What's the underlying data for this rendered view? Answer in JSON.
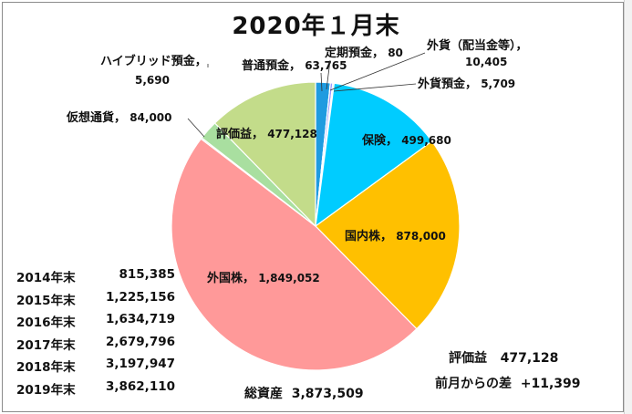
{
  "title": "2020年１月末",
  "chart_data": {
    "type": "pie",
    "title": "2020年１月末",
    "slices": [
      {
        "label": "普通預金",
        "value": 63765,
        "display": "63,765",
        "color": "#1f9be0"
      },
      {
        "label": "定期預金",
        "value": 80,
        "display": "80",
        "color": "#7f3fbf"
      },
      {
        "label": "外貨（配当金等）",
        "value": 10405,
        "display": "10,405",
        "color": "#9999ff"
      },
      {
        "label": "外貨預金",
        "value": 5709,
        "display": "5,709",
        "color": "#cfe2f3"
      },
      {
        "label": "保険",
        "value": 499680,
        "display": "499,680",
        "color": "#00ccff"
      },
      {
        "label": "国内株",
        "value": 878000,
        "display": "878,000",
        "color": "#ffc000"
      },
      {
        "label": "外国株",
        "value": 1849052,
        "display": "1,849,052",
        "color": "#ff9999"
      },
      {
        "label": "ハイブリッド預金",
        "value": 5690,
        "display": "5,690",
        "color": "#b7e1cd"
      },
      {
        "label": "仮想通貨",
        "value": 84000,
        "display": "84,000",
        "color": "#a9dfa0"
      },
      {
        "label": "評価益",
        "value": 477128,
        "display": "477,128",
        "color": "#c3dc8a"
      }
    ]
  },
  "history": [
    {
      "year": "2014年末",
      "value": "815,385"
    },
    {
      "year": "2015年末",
      "value": "1,225,156"
    },
    {
      "year": "2016年末",
      "value": "1,634,719"
    },
    {
      "year": "2017年末",
      "value": "2,679,796"
    },
    {
      "year": "2018年末",
      "value": "3,197,947"
    },
    {
      "year": "2019年末",
      "value": "3,862,110"
    }
  ],
  "total": {
    "label": "総資産",
    "value": "3,873,509"
  },
  "gain": {
    "label": "評価益",
    "value": "477,128"
  },
  "monthly_diff": {
    "label": "前月からの差",
    "value": "+11,399"
  }
}
